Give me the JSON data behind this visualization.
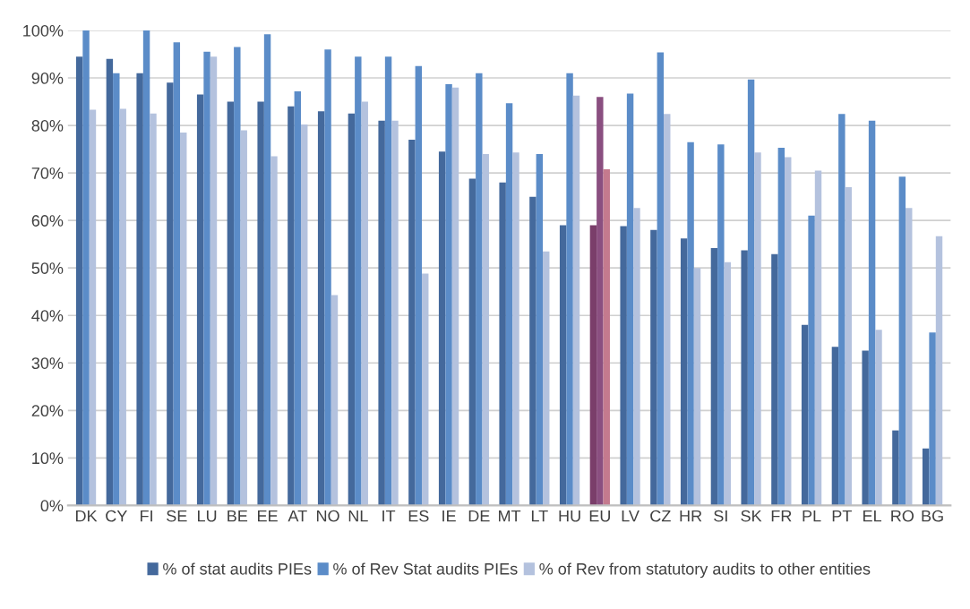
{
  "chart_data": {
    "type": "bar",
    "categories": [
      "DK",
      "CY",
      "FI",
      "SE",
      "LU",
      "BE",
      "EE",
      "AT",
      "NO",
      "NL",
      "IT",
      "ES",
      "IE",
      "DE",
      "MT",
      "LT",
      "HU",
      "EU",
      "LV",
      "CZ",
      "HR",
      "SI",
      "SK",
      "FR",
      "PL",
      "PT",
      "EL",
      "RO",
      "BG"
    ],
    "series": [
      {
        "name": "% of stat audits PIEs",
        "color": "#44699c",
        "colors": [
          "#44699c",
          "#44699c",
          "#44699c",
          "#44699c",
          "#44699c",
          "#44699c",
          "#44699c",
          "#44699c",
          "#44699c",
          "#44699c",
          "#44699c",
          "#44699c",
          "#44699c",
          "#44699c",
          "#44699c",
          "#44699c",
          "#44699c",
          "#7a3e6a",
          "#44699c",
          "#44699c",
          "#44699c",
          "#44699c",
          "#44699c",
          "#44699c",
          "#44699c",
          "#44699c",
          "#44699c",
          "#44699c",
          "#44699c"
        ],
        "values": [
          94.5,
          94,
          91,
          89,
          86.5,
          85,
          85,
          84,
          83,
          82.5,
          81,
          77,
          74.5,
          68.8,
          68,
          65,
          59,
          59,
          58.8,
          58,
          56.2,
          54.2,
          53.7,
          52.9,
          38,
          33.4,
          32.6,
          15.8,
          12
        ]
      },
      {
        "name": "% of Rev Stat audits PIEs",
        "color": "#5b8cc8",
        "colors": [
          "#5b8cc8",
          "#5b8cc8",
          "#5b8cc8",
          "#5b8cc8",
          "#5b8cc8",
          "#5b8cc8",
          "#5b8cc8",
          "#5b8cc8",
          "#5b8cc8",
          "#5b8cc8",
          "#5b8cc8",
          "#5b8cc8",
          "#5b8cc8",
          "#5b8cc8",
          "#5b8cc8",
          "#5b8cc8",
          "#5b8cc8",
          "#8a4f80",
          "#5b8cc8",
          "#5b8cc8",
          "#5b8cc8",
          "#5b8cc8",
          "#5b8cc8",
          "#5b8cc8",
          "#5b8cc8",
          "#5b8cc8",
          "#5b8cc8",
          "#5b8cc8",
          "#5b8cc8"
        ],
        "values": [
          100,
          91,
          100,
          97.5,
          95.5,
          96.5,
          99.2,
          87.2,
          96,
          94.5,
          94.5,
          92.5,
          88.7,
          91,
          84.7,
          74,
          91,
          86,
          86.7,
          95.4,
          76.5,
          76,
          89.7,
          75.3,
          61,
          82.4,
          81,
          69.2,
          36.4
        ]
      },
      {
        "name": "% of Rev from statutory audits to other entities",
        "color": "#b4c2de",
        "colors": [
          "#b4c2de",
          "#b4c2de",
          "#b4c2de",
          "#b4c2de",
          "#b4c2de",
          "#b4c2de",
          "#b4c2de",
          "#b4c2de",
          "#b4c2de",
          "#b4c2de",
          "#b4c2de",
          "#b4c2de",
          "#b4c2de",
          "#b4c2de",
          "#b4c2de",
          "#b4c2de",
          "#b4c2de",
          "#c47a8e",
          "#b4c2de",
          "#b4c2de",
          "#b4c2de",
          "#b4c2de",
          "#b4c2de",
          "#b4c2de",
          "#b4c2de",
          "#b4c2de",
          "#b4c2de",
          "#b4c2de",
          "#b4c2de"
        ],
        "values": [
          83.3,
          83.5,
          82.5,
          78.5,
          94.5,
          79,
          73.5,
          80.2,
          44.3,
          85,
          81,
          48.8,
          88,
          74,
          74.3,
          53.5,
          86.3,
          70.8,
          62.6,
          82.4,
          50,
          51.2,
          74.3,
          73.3,
          70.5,
          67,
          37,
          62.6,
          56.7
        ]
      }
    ],
    "ylim": [
      0,
      100
    ],
    "yticks": [
      {
        "value": 0,
        "label": "0%"
      },
      {
        "value": 10,
        "label": "10%"
      },
      {
        "value": 20,
        "label": "20%"
      },
      {
        "value": 30,
        "label": "30%"
      },
      {
        "value": 40,
        "label": "40%"
      },
      {
        "value": 50,
        "label": "50%"
      },
      {
        "value": 60,
        "label": "60%"
      },
      {
        "value": 70,
        "label": "70%"
      },
      {
        "value": 80,
        "label": "80%"
      },
      {
        "value": 90,
        "label": "90%"
      },
      {
        "value": 100,
        "label": "100%"
      }
    ],
    "grid": "y",
    "legend": "bottom"
  }
}
